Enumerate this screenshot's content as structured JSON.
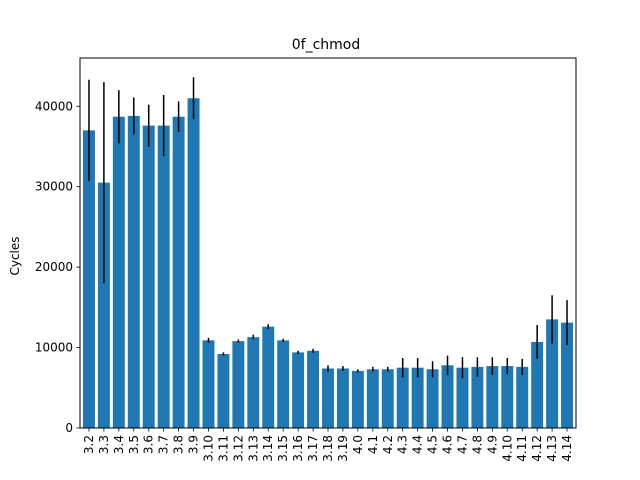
{
  "chart_data": {
    "type": "bar",
    "title": "0f_chmod",
    "xlabel": "",
    "ylabel": "Cycles",
    "ylim": [
      0,
      46000
    ],
    "yticks": [
      0,
      10000,
      20000,
      30000,
      40000
    ],
    "grid": false,
    "bar_color": "#1f77b4",
    "error_color": "#000000",
    "categories": [
      "3.2",
      "3.3",
      "3.4",
      "3.5",
      "3.6",
      "3.7",
      "3.8",
      "3.9",
      "3.10",
      "3.11",
      "3.12",
      "3.13",
      "3.14",
      "3.15",
      "3.16",
      "3.17",
      "3.18",
      "3.19",
      "4.0",
      "4.1",
      "4.2",
      "4.3",
      "4.4",
      "4.5",
      "4.6",
      "4.7",
      "4.8",
      "4.9",
      "4.10",
      "4.11",
      "4.12",
      "4.13",
      "4.14"
    ],
    "values": [
      37000,
      30500,
      38700,
      38800,
      37600,
      37600,
      38700,
      41000,
      10900,
      9200,
      10800,
      11300,
      12600,
      10900,
      9400,
      9600,
      7400,
      7400,
      7100,
      7300,
      7300,
      7500,
      7500,
      7300,
      7800,
      7500,
      7600,
      7700,
      7700,
      7600,
      10700,
      13500,
      13100
    ],
    "errors": [
      6300,
      12500,
      3300,
      2300,
      2600,
      3800,
      1900,
      2600,
      300,
      200,
      200,
      300,
      300,
      200,
      200,
      250,
      400,
      300,
      200,
      300,
      300,
      1200,
      1200,
      1000,
      1200,
      1300,
      1200,
      1100,
      1000,
      1000,
      2100,
      3000,
      2800
    ]
  }
}
